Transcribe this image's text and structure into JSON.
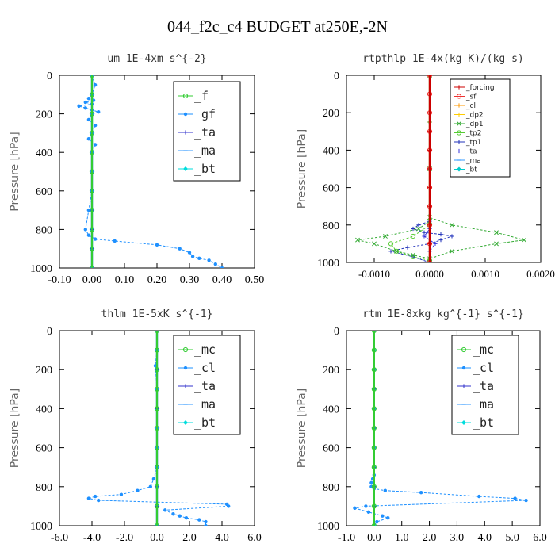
{
  "figure_title": "044_f2c_c4  BUDGET at250E,-2N",
  "chart_data": [
    {
      "type": "line",
      "title": "um  1E-4xm s^{-2}",
      "ylabel": "Pressure [hPa]",
      "xlim": [
        -0.1,
        0.5
      ],
      "ylim": [
        1000,
        0
      ],
      "xticks": [
        "-0.10",
        "0.00",
        "0.10",
        "0.20",
        "0.30",
        "0.40",
        "0.50"
      ],
      "xtick_values": [
        -0.1,
        0.0,
        0.1,
        0.2,
        0.3,
        0.4,
        0.5
      ],
      "yticks": [
        "0",
        "200",
        "400",
        "600",
        "800",
        "1000"
      ],
      "ytick_values": [
        0,
        200,
        400,
        600,
        800,
        1000
      ],
      "legend_position": "top-right",
      "series": [
        {
          "name": "_f",
          "color": "#33cc33",
          "marker": "circle-open",
          "x": [
            0,
            0,
            0,
            0,
            0,
            0,
            0,
            0,
            0,
            0,
            0
          ],
          "y": [
            0,
            100,
            200,
            300,
            400,
            500,
            600,
            700,
            800,
            900,
            1000
          ]
        },
        {
          "name": "_gf",
          "color": "#1e90ff",
          "marker": "filled",
          "x": [
            0.0,
            0.01,
            0.0,
            -0.01,
            0.005,
            -0.02,
            0.0,
            -0.04,
            -0.02,
            0.0,
            0.02,
            0.0,
            -0.01,
            0.01,
            0.0,
            -0.01,
            0.01,
            0.0,
            0.0,
            0.0,
            -0.01,
            -0.02,
            -0.01,
            0.01,
            0.07,
            0.2,
            0.27,
            0.3,
            0.31,
            0.33,
            0.36,
            0.38,
            0.4
          ],
          "y": [
            0,
            50,
            100,
            120,
            130,
            140,
            150,
            160,
            170,
            180,
            190,
            200,
            230,
            260,
            300,
            330,
            360,
            400,
            500,
            600,
            700,
            800,
            830,
            850,
            860,
            880,
            900,
            920,
            940,
            950,
            960,
            980,
            1000
          ]
        },
        {
          "name": "_ta",
          "color": "#3333cc",
          "marker": "plus",
          "x": [
            0,
            0,
            0,
            0,
            0,
            0,
            0,
            0,
            0,
            0,
            0
          ],
          "y": [
            0,
            100,
            200,
            300,
            400,
            500,
            600,
            700,
            800,
            900,
            1000
          ]
        },
        {
          "name": "_ma",
          "color": "#3399ff",
          "marker": "dash",
          "x": [
            0,
            0,
            0,
            0,
            0,
            0,
            0,
            0,
            0,
            0,
            0
          ],
          "y": [
            0,
            100,
            200,
            300,
            400,
            500,
            600,
            700,
            800,
            900,
            1000
          ]
        },
        {
          "name": "_bt",
          "color": "#00dddd",
          "marker": "diamond",
          "x": [
            0,
            0,
            0,
            0,
            0,
            0,
            0,
            0,
            0,
            0,
            0
          ],
          "y": [
            0,
            100,
            200,
            300,
            400,
            500,
            600,
            700,
            800,
            900,
            1000
          ]
        }
      ]
    },
    {
      "type": "line",
      "title": "rtpthlp  1E-4x(kg K)/(kg s)",
      "ylabel": "Pressure [hPa]",
      "xlim": [
        -0.0015,
        0.002
      ],
      "ylim": [
        1000,
        0
      ],
      "xticks": [
        "-0.0010",
        "0.0000",
        "0.0010",
        "0.0020"
      ],
      "xtick_values": [
        -0.001,
        0.0,
        0.001,
        0.002
      ],
      "yticks": [
        "0",
        "200",
        "400",
        "600",
        "800",
        "1000"
      ],
      "ytick_values": [
        0,
        200,
        400,
        600,
        800,
        1000
      ],
      "legend_position": "top-right",
      "series": [
        {
          "name": "_forcing",
          "color": "#cc0000",
          "marker": "plus",
          "x": [
            0,
            0,
            0,
            0,
            0,
            0,
            0,
            0,
            0,
            0,
            0
          ],
          "y": [
            0,
            100,
            200,
            300,
            400,
            500,
            600,
            700,
            800,
            900,
            1000
          ]
        },
        {
          "name": "_sf",
          "color": "#ee3333",
          "marker": "circle-open",
          "x": [
            0,
            0,
            0,
            0,
            0,
            0,
            0,
            0,
            0,
            0,
            0
          ],
          "y": [
            0,
            100,
            200,
            300,
            400,
            500,
            600,
            700,
            800,
            900,
            1000
          ]
        },
        {
          "name": "_cl",
          "color": "#ff9900",
          "marker": "plus",
          "x": [
            0,
            0,
            0,
            0,
            0
          ],
          "y": [
            0,
            250,
            500,
            750,
            1000
          ]
        },
        {
          "name": "_dp2",
          "color": "#ffcc00",
          "marker": "plus",
          "x": [
            0,
            0,
            0,
            0,
            0
          ],
          "y": [
            0,
            250,
            500,
            750,
            1000
          ]
        },
        {
          "name": "_dp1",
          "color": "#33aa33",
          "marker": "x",
          "x": [
            0,
            0,
            0,
            0.0004,
            0.0012,
            0.0017,
            0.0012,
            0.0004,
            0,
            -0.0003,
            -0.0006,
            -0.001,
            -0.0013,
            -0.0008,
            -0.0002,
            0,
            0
          ],
          "y": [
            0,
            500,
            760,
            800,
            840,
            880,
            900,
            940,
            980,
            960,
            940,
            900,
            880,
            860,
            820,
            780,
            1000
          ]
        },
        {
          "name": "_tp2",
          "color": "#55cc33",
          "marker": "circle-open",
          "x": [
            0,
            0,
            -0.0003,
            -0.0007,
            -0.0006,
            -0.0003,
            0,
            0
          ],
          "y": [
            0,
            800,
            860,
            900,
            940,
            970,
            990,
            1000
          ]
        },
        {
          "name": "_tp1",
          "color": "#2233bb",
          "marker": "plus",
          "x": [
            0,
            0,
            -0.0002,
            -0.0003,
            -0.0001,
            0.0002,
            0.0004,
            0.0002,
            0,
            -0.0004,
            -0.0007,
            -0.0003,
            0
          ],
          "y": [
            0,
            780,
            800,
            820,
            840,
            850,
            860,
            880,
            900,
            920,
            940,
            970,
            1000
          ]
        },
        {
          "name": "_ta",
          "color": "#3333dd",
          "marker": "plus",
          "x": [
            0,
            0,
            -0.0001,
            0.0001,
            0,
            0
          ],
          "y": [
            0,
            820,
            860,
            900,
            940,
            1000
          ]
        },
        {
          "name": "_ma",
          "color": "#3399ff",
          "marker": "dash",
          "x": [
            0,
            0,
            0,
            0,
            0
          ],
          "y": [
            0,
            250,
            500,
            750,
            1000
          ]
        },
        {
          "name": "_bt",
          "color": "#00cccc",
          "marker": "diamond",
          "x": [
            0,
            0,
            0,
            0,
            0
          ],
          "y": [
            0,
            250,
            500,
            750,
            1000
          ]
        }
      ]
    },
    {
      "type": "line",
      "title": "thlm  1E-5xK s^{-1}",
      "ylabel": "Pressure [hPa]",
      "xlim": [
        -6.0,
        6.0
      ],
      "ylim": [
        1000,
        0
      ],
      "xticks": [
        "-6.0",
        "-4.0",
        "-2.0",
        "0.0",
        "2.0",
        "4.0",
        "6.0"
      ],
      "xtick_values": [
        -6.0,
        -4.0,
        -2.0,
        0.0,
        2.0,
        4.0,
        6.0
      ],
      "yticks": [
        "0",
        "200",
        "400",
        "600",
        "800",
        "1000"
      ],
      "ytick_values": [
        0,
        200,
        400,
        600,
        800,
        1000
      ],
      "legend_position": "top-right",
      "series": [
        {
          "name": "_mc",
          "color": "#33cc33",
          "marker": "circle-open",
          "x": [
            0,
            0,
            0,
            0,
            0,
            0,
            0,
            0,
            0,
            0,
            0
          ],
          "y": [
            0,
            100,
            200,
            300,
            400,
            500,
            600,
            700,
            800,
            900,
            1000
          ]
        },
        {
          "name": "_cl",
          "color": "#1e90ff",
          "marker": "filled",
          "x": [
            0,
            0,
            -0.1,
            0,
            0,
            0,
            0,
            -0.2,
            -0.4,
            -1.2,
            -2.2,
            -3.8,
            -4.2,
            -3.6,
            4.3,
            4.4,
            0.5,
            1.0,
            1.4,
            1.8,
            2.6,
            3.0,
            3.0
          ],
          "y": [
            0,
            100,
            180,
            300,
            500,
            600,
            700,
            760,
            800,
            820,
            840,
            850,
            860,
            870,
            890,
            900,
            920,
            940,
            950,
            960,
            970,
            980,
            1000
          ]
        },
        {
          "name": "_ta",
          "color": "#3333cc",
          "marker": "plus",
          "x": [
            0,
            0,
            0,
            0,
            0,
            0,
            0,
            0,
            0,
            0,
            0
          ],
          "y": [
            0,
            100,
            200,
            300,
            400,
            500,
            600,
            700,
            800,
            900,
            1000
          ]
        },
        {
          "name": "_ma",
          "color": "#3399ff",
          "marker": "dash",
          "x": [
            0,
            0,
            0,
            0,
            0,
            0,
            0,
            0,
            0,
            0,
            0
          ],
          "y": [
            0,
            100,
            200,
            300,
            400,
            500,
            600,
            700,
            800,
            900,
            1000
          ]
        },
        {
          "name": "_bt",
          "color": "#00dddd",
          "marker": "diamond",
          "x": [
            0,
            0,
            0,
            0,
            0,
            0,
            0,
            0,
            0,
            0,
            0
          ],
          "y": [
            0,
            100,
            200,
            300,
            400,
            500,
            600,
            700,
            800,
            900,
            1000
          ]
        }
      ]
    },
    {
      "type": "line",
      "title": "rtm  1E-8xkg kg^{-1} s^{-1}",
      "ylabel": "Pressure [hPa]",
      "xlim": [
        -1.0,
        6.0
      ],
      "ylim": [
        1000,
        0
      ],
      "xticks": [
        "-1.0",
        "0.0",
        "1.0",
        "2.0",
        "3.0",
        "4.0",
        "5.0",
        "6.0"
      ],
      "xtick_values": [
        -1.0,
        0.0,
        1.0,
        2.0,
        3.0,
        4.0,
        5.0,
        6.0
      ],
      "yticks": [
        "0",
        "200",
        "400",
        "600",
        "800",
        "1000"
      ],
      "ytick_values": [
        0,
        200,
        400,
        600,
        800,
        1000
      ],
      "legend_position": "top-right",
      "series": [
        {
          "name": "_mc",
          "color": "#33cc33",
          "marker": "circle-open",
          "x": [
            0,
            0,
            0,
            0,
            0,
            0,
            0,
            0,
            0,
            0,
            0
          ],
          "y": [
            0,
            100,
            200,
            300,
            400,
            500,
            600,
            700,
            800,
            900,
            1000
          ]
        },
        {
          "name": "_cl",
          "color": "#1e90ff",
          "marker": "filled",
          "x": [
            0,
            0,
            0,
            0,
            0,
            -0.05,
            -0.1,
            -0.1,
            0,
            0.4,
            1.7,
            3.8,
            5.1,
            5.5,
            -0.3,
            -0.7,
            -0.2,
            0.3,
            0.5,
            0.1,
            0
          ],
          "y": [
            0,
            200,
            400,
            600,
            740,
            760,
            780,
            800,
            810,
            820,
            830,
            850,
            860,
            870,
            900,
            910,
            930,
            950,
            960,
            980,
            1000
          ]
        },
        {
          "name": "_ta",
          "color": "#3333cc",
          "marker": "plus",
          "x": [
            0,
            0,
            0,
            0,
            0,
            0,
            0,
            0,
            0,
            0,
            0
          ],
          "y": [
            0,
            100,
            200,
            300,
            400,
            500,
            600,
            700,
            800,
            900,
            1000
          ]
        },
        {
          "name": "_ma",
          "color": "#3399ff",
          "marker": "dash",
          "x": [
            0,
            0,
            0,
            0,
            0,
            0,
            0,
            0,
            0,
            0,
            0
          ],
          "y": [
            0,
            100,
            200,
            300,
            400,
            500,
            600,
            700,
            800,
            900,
            1000
          ]
        },
        {
          "name": "_bt",
          "color": "#00dddd",
          "marker": "diamond",
          "x": [
            0,
            0,
            0,
            0,
            0,
            0,
            0,
            0,
            0,
            0,
            0
          ],
          "y": [
            0,
            100,
            200,
            300,
            400,
            500,
            600,
            700,
            800,
            900,
            1000
          ]
        }
      ]
    }
  ]
}
